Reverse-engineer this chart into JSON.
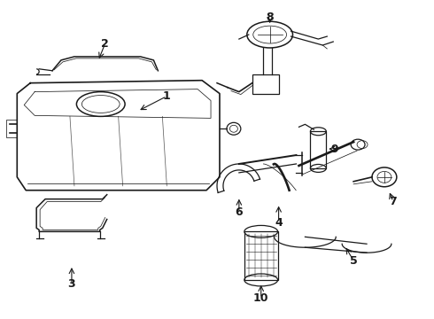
{
  "background_color": "#ffffff",
  "fig_width": 4.9,
  "fig_height": 3.6,
  "dpi": 100,
  "line_color": "#1a1a1a",
  "label_fontsize": 9,
  "lw": 0.9
}
